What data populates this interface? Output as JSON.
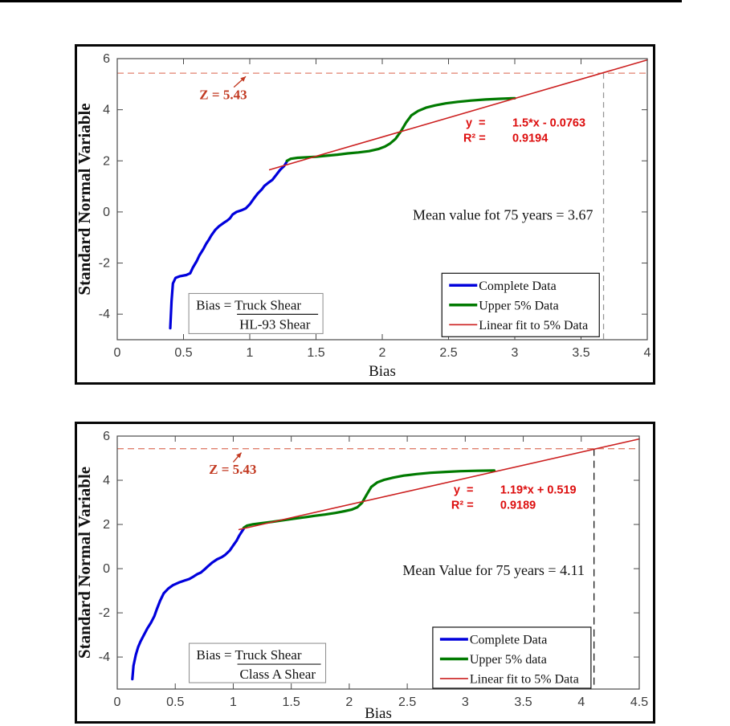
{
  "page": {
    "background": "#ffffff"
  },
  "chart_data": [
    {
      "name": "bias-hl93-shear",
      "type": "line",
      "xlabel": "Bias",
      "ylabel": "Standard Normal Variable",
      "xlim": [
        0,
        4
      ],
      "ylim": [
        -5.0,
        6
      ],
      "grid": false,
      "x_ticks": [
        0,
        0.5,
        1,
        1.5,
        2,
        2.5,
        3,
        3.5,
        4
      ],
      "x_tick_labels": [
        "0",
        "0.5",
        "1",
        "1.5",
        "2",
        "2.5",
        "3",
        "3.5",
        "4"
      ],
      "y_ticks": [
        -4,
        -2,
        0,
        2,
        4,
        6
      ],
      "y_tick_labels": [
        "-4",
        "-2",
        "0",
        "2",
        "4",
        "6"
      ],
      "z_threshold": {
        "value": 5.43,
        "label": "Z = 5.43",
        "color": "#e0806e",
        "label_pos": [
          0.62,
          4.42
        ],
        "arrow": [
          [
            0.88,
            4.88
          ],
          [
            0.97,
            5.3
          ]
        ]
      },
      "mean_75yr": {
        "value": 3.67,
        "label": "Mean value fot 75 years = 3.67",
        "label_pos": [
          2.23,
          -0.3
        ],
        "line_color": "#979797",
        "line_dash": "7,5"
      },
      "fit_equation": {
        "lhs1": "y  =",
        "rhs1": "1.5*x - 0.0763",
        "lhs2": "R² =",
        "rhs2": "0.9194",
        "pos": [
          2.63,
          3.35
        ],
        "color": "#dd0f0f"
      },
      "bias_definition": {
        "prefix": "Bias = ",
        "numerator": "Truck Shear",
        "denominator": "HL-93 Shear",
        "pos": [
          0.54,
          -3.19
        ],
        "size": [
          167,
          50
        ]
      },
      "legend": {
        "pos": [
          2.45,
          -2.4
        ],
        "size": [
          196,
          79
        ],
        "entries": [
          {
            "label": "Complete Data",
            "color": "#0000dc",
            "lw": 3.5
          },
          {
            "label": "Upper 5% Data",
            "color": "#007a00",
            "lw": 3.5
          },
          {
            "label": "Linear fit to 5% Data",
            "color": "#cc2020",
            "lw": 1.6
          }
        ]
      },
      "series": [
        {
          "name": "complete-data",
          "color": "#0000dc",
          "lw": 3.2,
          "points": [
            [
              0.4,
              -4.55
            ],
            [
              0.41,
              -3.5
            ],
            [
              0.42,
              -2.8
            ],
            [
              0.44,
              -2.58
            ],
            [
              0.47,
              -2.52
            ],
            [
              0.52,
              -2.47
            ],
            [
              0.55,
              -2.4
            ],
            [
              0.57,
              -2.18
            ],
            [
              0.6,
              -1.92
            ],
            [
              0.62,
              -1.7
            ],
            [
              0.65,
              -1.45
            ],
            [
              0.67,
              -1.25
            ],
            [
              0.69,
              -1.1
            ],
            [
              0.71,
              -0.92
            ],
            [
              0.74,
              -0.7
            ],
            [
              0.77,
              -0.55
            ],
            [
              0.8,
              -0.44
            ],
            [
              0.83,
              -0.34
            ],
            [
              0.85,
              -0.25
            ],
            [
              0.87,
              -0.1
            ],
            [
              0.9,
              0.0
            ],
            [
              0.94,
              0.07
            ],
            [
              0.97,
              0.14
            ],
            [
              1.0,
              0.3
            ],
            [
              1.03,
              0.52
            ],
            [
              1.06,
              0.72
            ],
            [
              1.09,
              0.88
            ],
            [
              1.11,
              1.02
            ],
            [
              1.14,
              1.14
            ],
            [
              1.17,
              1.25
            ],
            [
              1.2,
              1.45
            ],
            [
              1.23,
              1.65
            ],
            [
              1.26,
              1.8
            ],
            [
              1.28,
              1.97
            ]
          ]
        },
        {
          "name": "upper-5pct-data",
          "color": "#007a00",
          "lw": 3.2,
          "points": [
            [
              1.28,
              2.0
            ],
            [
              1.31,
              2.08
            ],
            [
              1.36,
              2.12
            ],
            [
              1.43,
              2.14
            ],
            [
              1.5,
              2.16
            ],
            [
              1.58,
              2.2
            ],
            [
              1.66,
              2.24
            ],
            [
              1.74,
              2.29
            ],
            [
              1.82,
              2.33
            ],
            [
              1.9,
              2.38
            ],
            [
              1.97,
              2.46
            ],
            [
              2.02,
              2.56
            ],
            [
              2.06,
              2.68
            ],
            [
              2.1,
              2.86
            ],
            [
              2.14,
              3.15
            ],
            [
              2.18,
              3.5
            ],
            [
              2.22,
              3.78
            ],
            [
              2.27,
              3.95
            ],
            [
              2.33,
              4.08
            ],
            [
              2.4,
              4.17
            ],
            [
              2.48,
              4.25
            ],
            [
              2.57,
              4.31
            ],
            [
              2.67,
              4.36
            ],
            [
              2.78,
              4.4
            ],
            [
              2.89,
              4.43
            ],
            [
              3.0,
              4.45
            ]
          ]
        },
        {
          "name": "linear-fit",
          "color": "#cc2020",
          "lw": 1.6,
          "points": [
            [
              1.15,
              1.65
            ],
            [
              4.0,
              5.95
            ]
          ]
        }
      ]
    },
    {
      "name": "bias-class-a-shear",
      "type": "line",
      "xlabel": "Bias",
      "ylabel": "Standard Normal Variable",
      "xlim": [
        0,
        4.5
      ],
      "ylim": [
        -5.45,
        6
      ],
      "grid": false,
      "x_ticks": [
        0,
        0.5,
        1,
        1.5,
        2,
        2.5,
        3,
        3.5,
        4,
        4.5
      ],
      "x_tick_labels": [
        "0",
        "0.5",
        "1",
        "1.5",
        "2",
        "2.5",
        "3",
        "3.5",
        "4",
        "4.5"
      ],
      "y_ticks": [
        -4,
        -2,
        0,
        2,
        4,
        6
      ],
      "y_tick_labels": [
        "-4",
        "-2",
        "0",
        "2",
        "4",
        "6"
      ],
      "z_threshold": {
        "value": 5.43,
        "label": "Z = 5.43",
        "color": "#e0806e",
        "label_pos": [
          0.79,
          4.3
        ],
        "arrow": [
          [
            1.0,
            4.82
          ],
          [
            1.07,
            5.25
          ]
        ]
      },
      "mean_75yr": {
        "value": 4.11,
        "label": "Mean Value for 75 years = 4.11",
        "label_pos": [
          2.46,
          -0.28
        ],
        "line_color": "#1a1a1a",
        "line_dash": "9,6"
      },
      "fit_equation": {
        "lhs1": "y  =",
        "rhs1": "1.19*x + 0.519",
        "lhs2": "R² =",
        "rhs2": "0.9189",
        "pos": [
          2.9,
          3.4
        ],
        "color": "#dd0f0f"
      },
      "bias_definition": {
        "prefix": "Bias = ",
        "numerator": "Truck Shear",
        "denominator": "Class A Shear",
        "pos": [
          0.62,
          -3.38
        ],
        "size": [
          170,
          49
        ]
      },
      "legend": {
        "pos": [
          2.72,
          -2.65
        ],
        "size": [
          197,
          76
        ],
        "entries": [
          {
            "label": "Complete Data",
            "color": "#0000dc",
            "lw": 3.5
          },
          {
            "label": "Upper 5% data",
            "color": "#007a00",
            "lw": 3.5
          },
          {
            "label": "Linear fit to 5% Data",
            "color": "#cc2020",
            "lw": 1.6
          }
        ]
      },
      "series": [
        {
          "name": "complete-data",
          "color": "#0000dc",
          "lw": 3.2,
          "points": [
            [
              0.13,
              -5.0
            ],
            [
              0.14,
              -4.4
            ],
            [
              0.16,
              -3.9
            ],
            [
              0.18,
              -3.55
            ],
            [
              0.2,
              -3.3
            ],
            [
              0.23,
              -3.0
            ],
            [
              0.26,
              -2.7
            ],
            [
              0.29,
              -2.45
            ],
            [
              0.32,
              -2.15
            ],
            [
              0.34,
              -1.85
            ],
            [
              0.37,
              -1.45
            ],
            [
              0.4,
              -1.12
            ],
            [
              0.44,
              -0.9
            ],
            [
              0.48,
              -0.75
            ],
            [
              0.53,
              -0.63
            ],
            [
              0.58,
              -0.54
            ],
            [
              0.62,
              -0.47
            ],
            [
              0.66,
              -0.35
            ],
            [
              0.69,
              -0.25
            ],
            [
              0.72,
              -0.18
            ],
            [
              0.75,
              -0.05
            ],
            [
              0.78,
              0.1
            ],
            [
              0.82,
              0.28
            ],
            [
              0.86,
              0.42
            ],
            [
              0.9,
              0.52
            ],
            [
              0.93,
              0.62
            ],
            [
              0.97,
              0.82
            ],
            [
              1.0,
              1.05
            ],
            [
              1.03,
              1.28
            ],
            [
              1.05,
              1.48
            ],
            [
              1.07,
              1.65
            ],
            [
              1.09,
              1.8
            ]
          ]
        },
        {
          "name": "upper-5pct-data",
          "color": "#007a00",
          "lw": 3.2,
          "points": [
            [
              1.09,
              1.85
            ],
            [
              1.12,
              1.95
            ],
            [
              1.17,
              2.01
            ],
            [
              1.25,
              2.06
            ],
            [
              1.34,
              2.12
            ],
            [
              1.43,
              2.19
            ],
            [
              1.52,
              2.26
            ],
            [
              1.61,
              2.32
            ],
            [
              1.7,
              2.39
            ],
            [
              1.79,
              2.45
            ],
            [
              1.88,
              2.52
            ],
            [
              1.96,
              2.6
            ],
            [
              2.02,
              2.67
            ],
            [
              2.07,
              2.78
            ],
            [
              2.11,
              2.98
            ],
            [
              2.15,
              3.35
            ],
            [
              2.19,
              3.7
            ],
            [
              2.24,
              3.9
            ],
            [
              2.3,
              4.02
            ],
            [
              2.38,
              4.12
            ],
            [
              2.47,
              4.21
            ],
            [
              2.58,
              4.28
            ],
            [
              2.7,
              4.34
            ],
            [
              2.83,
              4.38
            ],
            [
              2.96,
              4.41
            ],
            [
              3.1,
              4.43
            ],
            [
              3.25,
              4.44
            ]
          ]
        },
        {
          "name": "linear-fit",
          "color": "#cc2020",
          "lw": 1.6,
          "points": [
            [
              1.05,
              1.77
            ],
            [
              4.5,
              5.87
            ]
          ]
        }
      ]
    }
  ]
}
